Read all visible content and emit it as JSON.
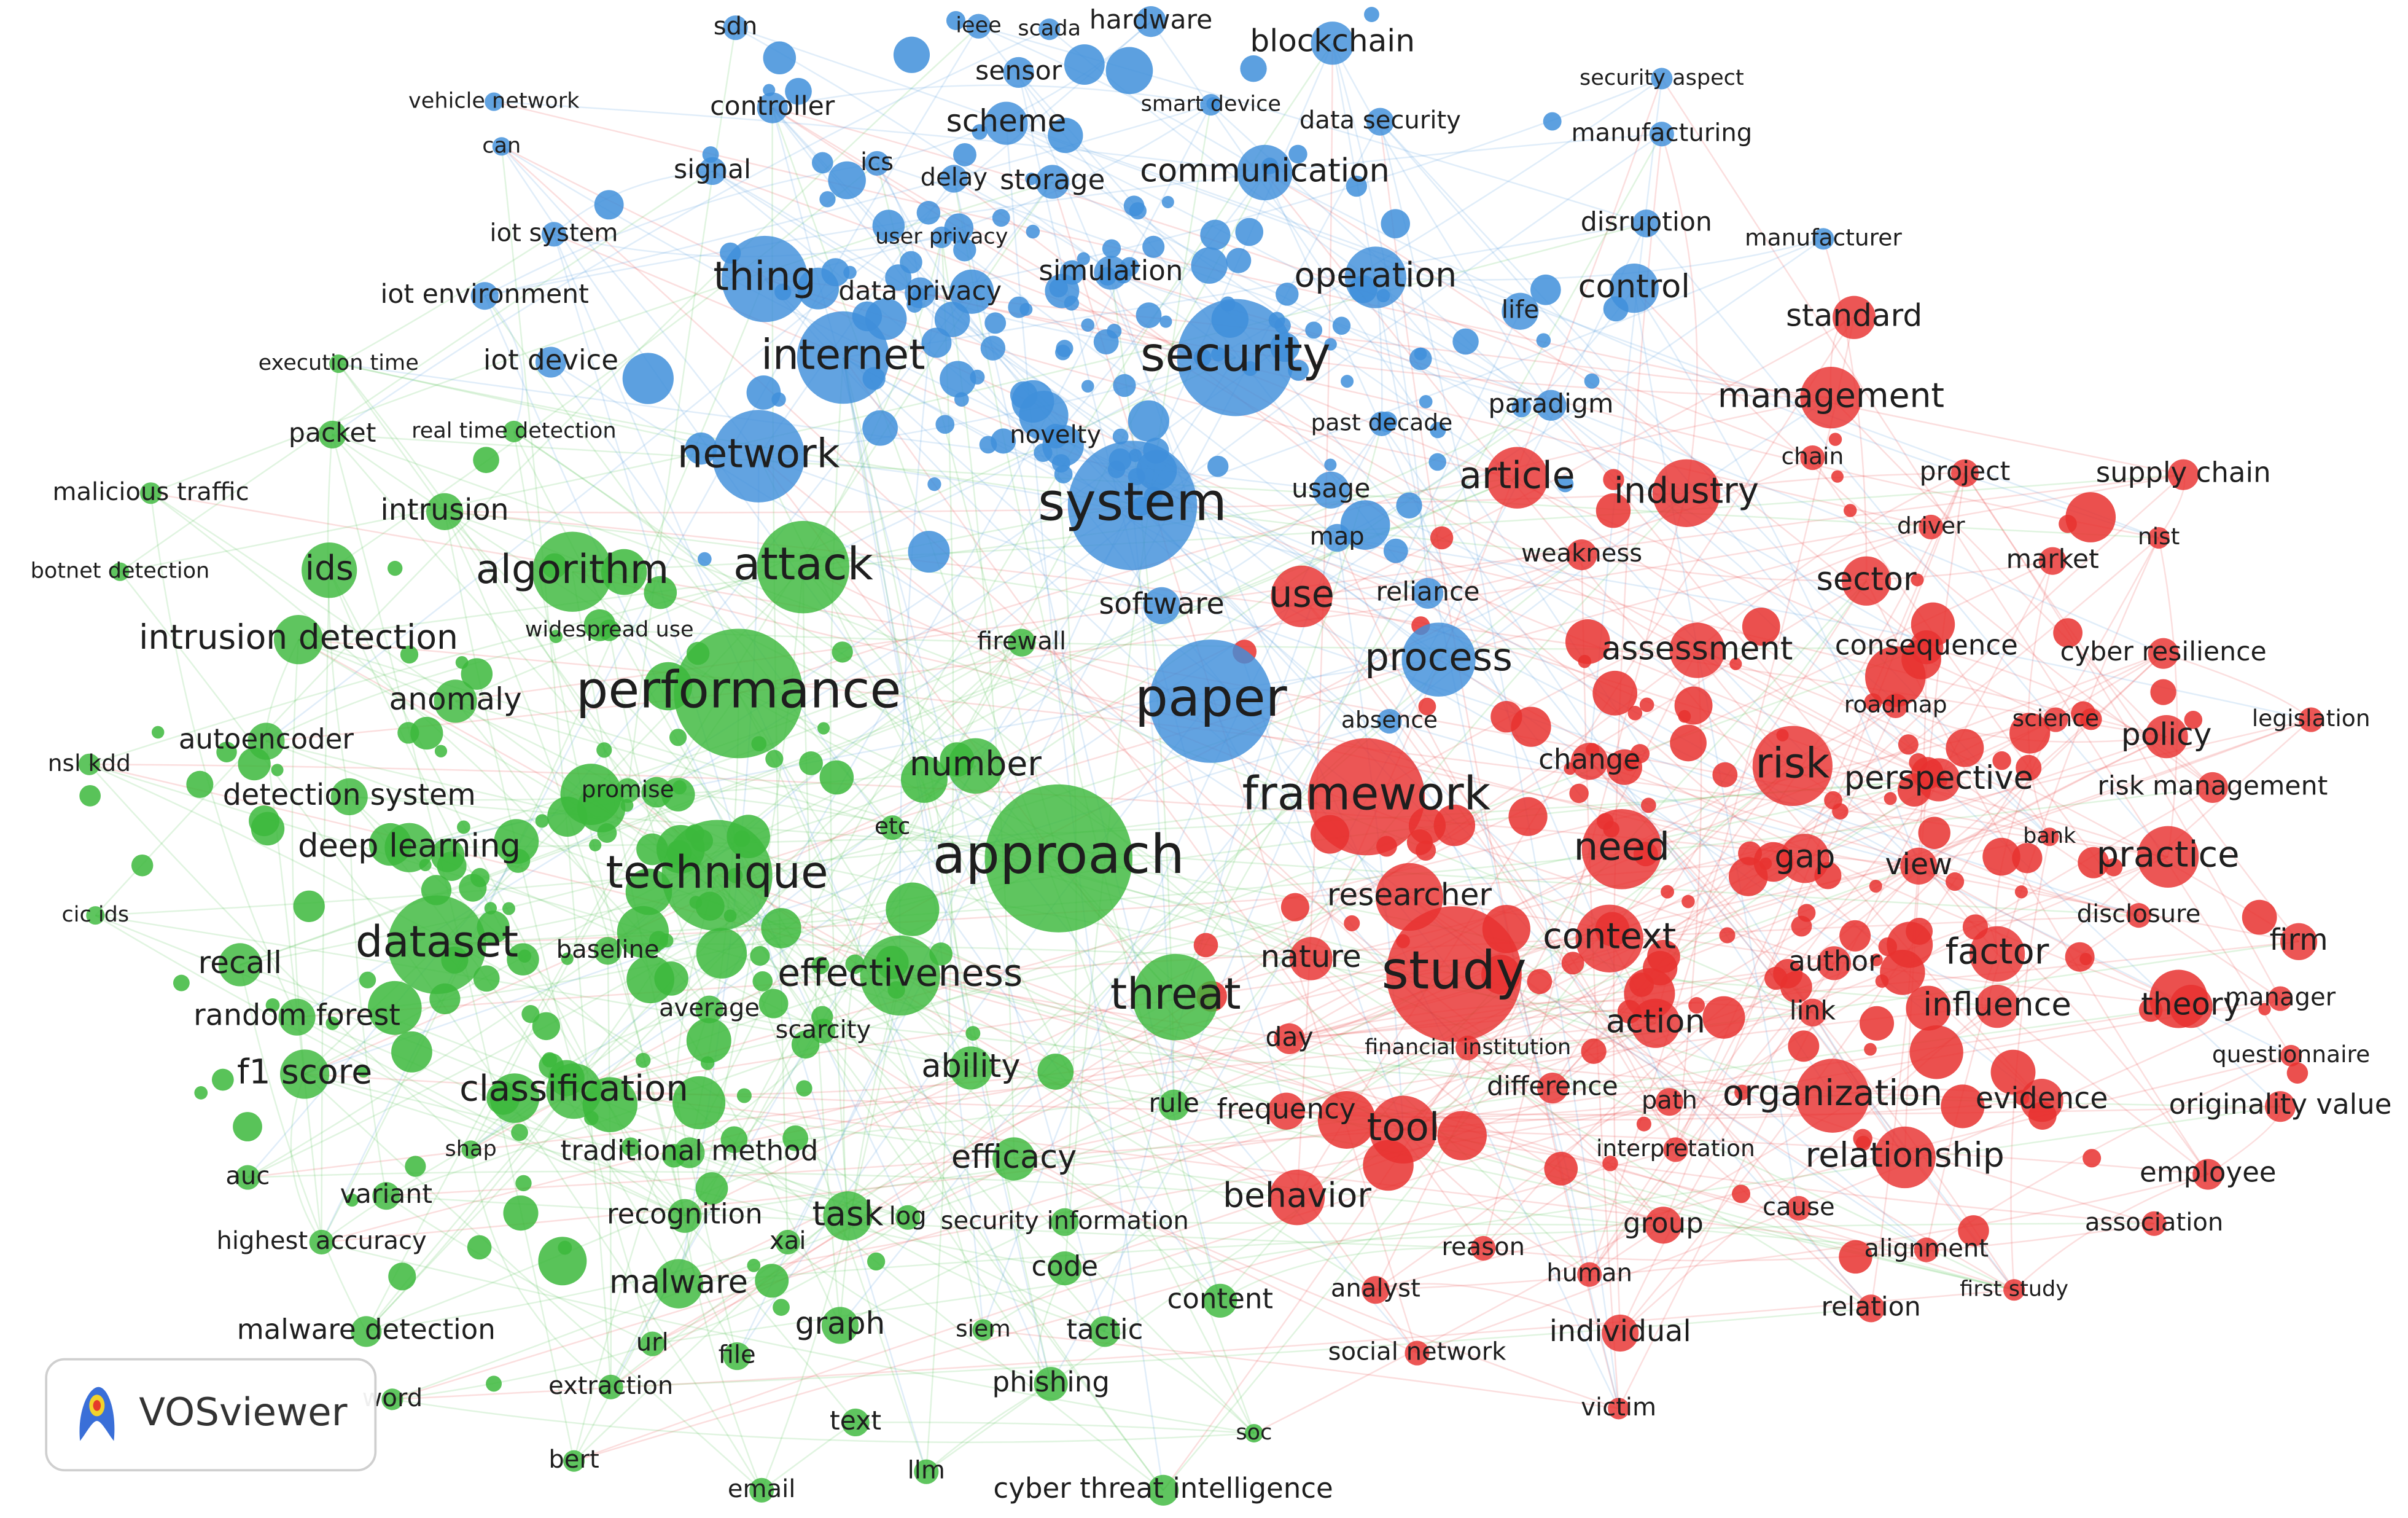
{
  "clusters": [
    {
      "color": "#e8312f",
      "nodes": [
        "standard",
        "management",
        "chain",
        "project",
        "supply chain",
        "article",
        "industry",
        "driver",
        "nist",
        "market",
        "weakness",
        "sector",
        "use",
        "assessment",
        "consequence",
        "cyber resilience",
        "roadmap",
        "science",
        "legislation",
        "policy",
        "risk",
        "change",
        "perspective",
        "risk management",
        "framework",
        "bank",
        "need",
        "gap",
        "view",
        "practice",
        "researcher",
        "context",
        "disclosure",
        "study",
        "factor",
        "firm",
        "nature",
        "author",
        "influence",
        "theory",
        "manager",
        "link",
        "action",
        "day",
        "financial institution",
        "questionnaire",
        "difference",
        "path",
        "organization",
        "evidence",
        "originality value",
        "frequency",
        "tool",
        "interpretation",
        "relationship",
        "employee",
        "behavior",
        "cause",
        "association",
        "group",
        "reason",
        "alignment",
        "human",
        "analyst",
        "first study",
        "relation",
        "individual",
        "social network",
        "victim"
      ]
    },
    {
      "color": "#3cb83c",
      "nodes": [
        "execution time",
        "packet",
        "real time detection",
        "malicious traffic",
        "intrusion",
        "botnet detection",
        "ids",
        "algorithm",
        "attack",
        "widespread use",
        "intrusion detection",
        "anomaly",
        "performance",
        "autoencoder",
        "nsl kdd",
        "number",
        "promise",
        "detection system",
        "etc",
        "deep learning",
        "approach",
        "technique",
        "cic ids",
        "dataset",
        "baseline",
        "recall",
        "effectiveness",
        "threat",
        "average",
        "random forest",
        "scarcity",
        "ability",
        "f1 score",
        "classification",
        "rule",
        "shap",
        "traditional method",
        "efficacy",
        "auc",
        "variant",
        "recognition",
        "task",
        "log",
        "security information",
        "highest accuracy",
        "xai",
        "code",
        "malware",
        "content",
        "malware detection",
        "graph",
        "siem",
        "tactic",
        "url",
        "file",
        "extraction",
        "phishing",
        "word",
        "text",
        "soc",
        "bert",
        "llm",
        "email",
        "cyber threat intelligence",
        "firewall"
      ]
    },
    {
      "color": "#3f8fdb",
      "nodes": [
        "sdn",
        "ieee",
        "scada",
        "hardware",
        "blockchain",
        "security aspect",
        "vehicle network",
        "controller",
        "sensor",
        "smart device",
        "data security",
        "manufacturing",
        "can",
        "scheme",
        "signal",
        "ics",
        "delay",
        "storage",
        "communication",
        "disruption",
        "manufacturer",
        "iot system",
        "user privacy",
        "thing",
        "data privacy",
        "simulation",
        "operation",
        "control",
        "iot environment",
        "life",
        "internet",
        "security",
        "paradigm",
        "iot device",
        "network",
        "system",
        "usage",
        "past decade",
        "novelty",
        "map",
        "software",
        "reliance",
        "paper",
        "absence",
        "process"
      ]
    }
  ],
  "logo": {
    "text": "VOSviewer"
  }
}
